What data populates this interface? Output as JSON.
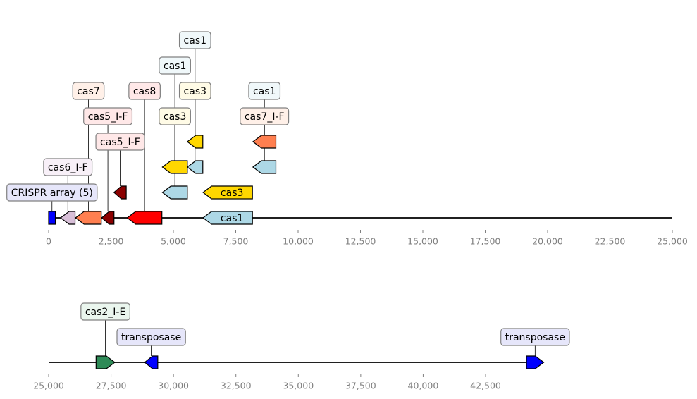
{
  "panels": [
    {
      "ticks": [
        {
          "value": 0,
          "label": "0"
        },
        {
          "value": 2500,
          "label": "2,500"
        },
        {
          "value": 5000,
          "label": "5,000"
        },
        {
          "value": 7500,
          "label": "7,500"
        },
        {
          "value": 10000,
          "label": "10,000"
        },
        {
          "value": 12500,
          "label": "12,500"
        },
        {
          "value": 15000,
          "label": "15,000"
        },
        {
          "value": 17500,
          "label": "17,500"
        },
        {
          "value": 20000,
          "label": "20,000"
        },
        {
          "value": 22500,
          "label": "22,500"
        },
        {
          "value": 25000,
          "label": "25,000"
        }
      ],
      "genes": [
        {
          "start": 0,
          "end": 270,
          "strand": 0,
          "color": "#0000ff",
          "label": "CRISPR array (5)",
          "label_color": "#e6e6fa",
          "level": 0,
          "text_level": 1
        },
        {
          "start": 480,
          "end": 1060,
          "strand": -1,
          "color": "#d8bfd8",
          "label": "cas6_I-F",
          "label_color": "#f8f0f8",
          "level": 0,
          "text_level": 2
        },
        {
          "start": 1080,
          "end": 2110,
          "strand": -1,
          "color": "#ff7f50",
          "label": "cas7",
          "label_color": "#fff0e8",
          "level": 0,
          "text_level": 5
        },
        {
          "start": 2130,
          "end": 2620,
          "strand": -1,
          "color": "#8b0000",
          "label": "cas5_I-F",
          "label_color": "#ffe8e8",
          "level": 0,
          "text_level": 4
        },
        {
          "start": 2620,
          "end": 3110,
          "strand": -1,
          "color": "#8b0000",
          "label": "cas5_I-F",
          "label_color": "#ffe8e8",
          "level": 1,
          "text_level": 3
        },
        {
          "start": 3150,
          "end": 4540,
          "strand": -1,
          "color": "#ff0000",
          "label": "cas8",
          "label_color": "#ffe8e8",
          "level": 0,
          "text_level": 5
        },
        {
          "start": 4560,
          "end": 5560,
          "strand": -1,
          "color": "#add8e6",
          "label": "cas1",
          "label_color": "#f0f8fa",
          "level": 1,
          "text_level": 6
        },
        {
          "start": 4560,
          "end": 5560,
          "strand": -1,
          "color": "#ffd700",
          "label": "cas3",
          "label_color": "#fffbe6",
          "level": 2,
          "text_level": 4
        },
        {
          "start": 5560,
          "end": 6180,
          "strand": -1,
          "color": "#add8e6",
          "label": "cas1",
          "label_color": "#f0f8fa",
          "level": 2,
          "text_level": 7
        },
        {
          "start": 5560,
          "end": 6180,
          "strand": -1,
          "color": "#ffd700",
          "label": "cas3",
          "label_color": "#fffbe6",
          "level": 3,
          "text_level": 5
        },
        {
          "start": 6190,
          "end": 8170,
          "strand": -1,
          "color": "#ffd700",
          "label": "cas3",
          "label_color": "",
          "level": 1,
          "text_level": null,
          "inline": true
        },
        {
          "start": 6190,
          "end": 8170,
          "strand": -1,
          "color": "#add8e6",
          "label": "cas1",
          "label_color": "",
          "level": 0,
          "text_level": null,
          "inline": true
        },
        {
          "start": 8190,
          "end": 9110,
          "strand": -1,
          "color": "#ff7f50",
          "label": "cas7_I-F",
          "label_color": "#fff0e8",
          "level": 3,
          "text_level": 4
        },
        {
          "start": 8190,
          "end": 9110,
          "strand": -1,
          "color": "#add8e6",
          "label": "cas1",
          "label_color": "#f0f8fa",
          "level": 2,
          "text_level": 5
        }
      ]
    },
    {
      "ticks": [
        {
          "value": 25000,
          "label": "25,000"
        },
        {
          "value": 27500,
          "label": "27,500"
        },
        {
          "value": 30000,
          "label": "30,000"
        },
        {
          "value": 32500,
          "label": "32,500"
        },
        {
          "value": 35000,
          "label": "35,000"
        },
        {
          "value": 37500,
          "label": "37,500"
        },
        {
          "value": 40000,
          "label": "40,000"
        },
        {
          "value": 42500,
          "label": "42,500"
        }
      ],
      "genes": [
        {
          "start": 26900,
          "end": 27650,
          "strand": 1,
          "color": "#2e8b57",
          "label": "cas2_I-E",
          "label_color": "#eaf6ee",
          "level": 0,
          "text_level": 2
        },
        {
          "start": 28850,
          "end": 29370,
          "strand": -1,
          "color": "#0000ff",
          "label": "transposase",
          "label_color": "#e6e6fa",
          "level": 0,
          "text_level": 1
        },
        {
          "start": 44140,
          "end": 44830,
          "strand": 1,
          "color": "#0000ff",
          "label": "transposase",
          "label_color": "#e6e6fa",
          "level": 0,
          "text_level": 1
        }
      ]
    }
  ]
}
